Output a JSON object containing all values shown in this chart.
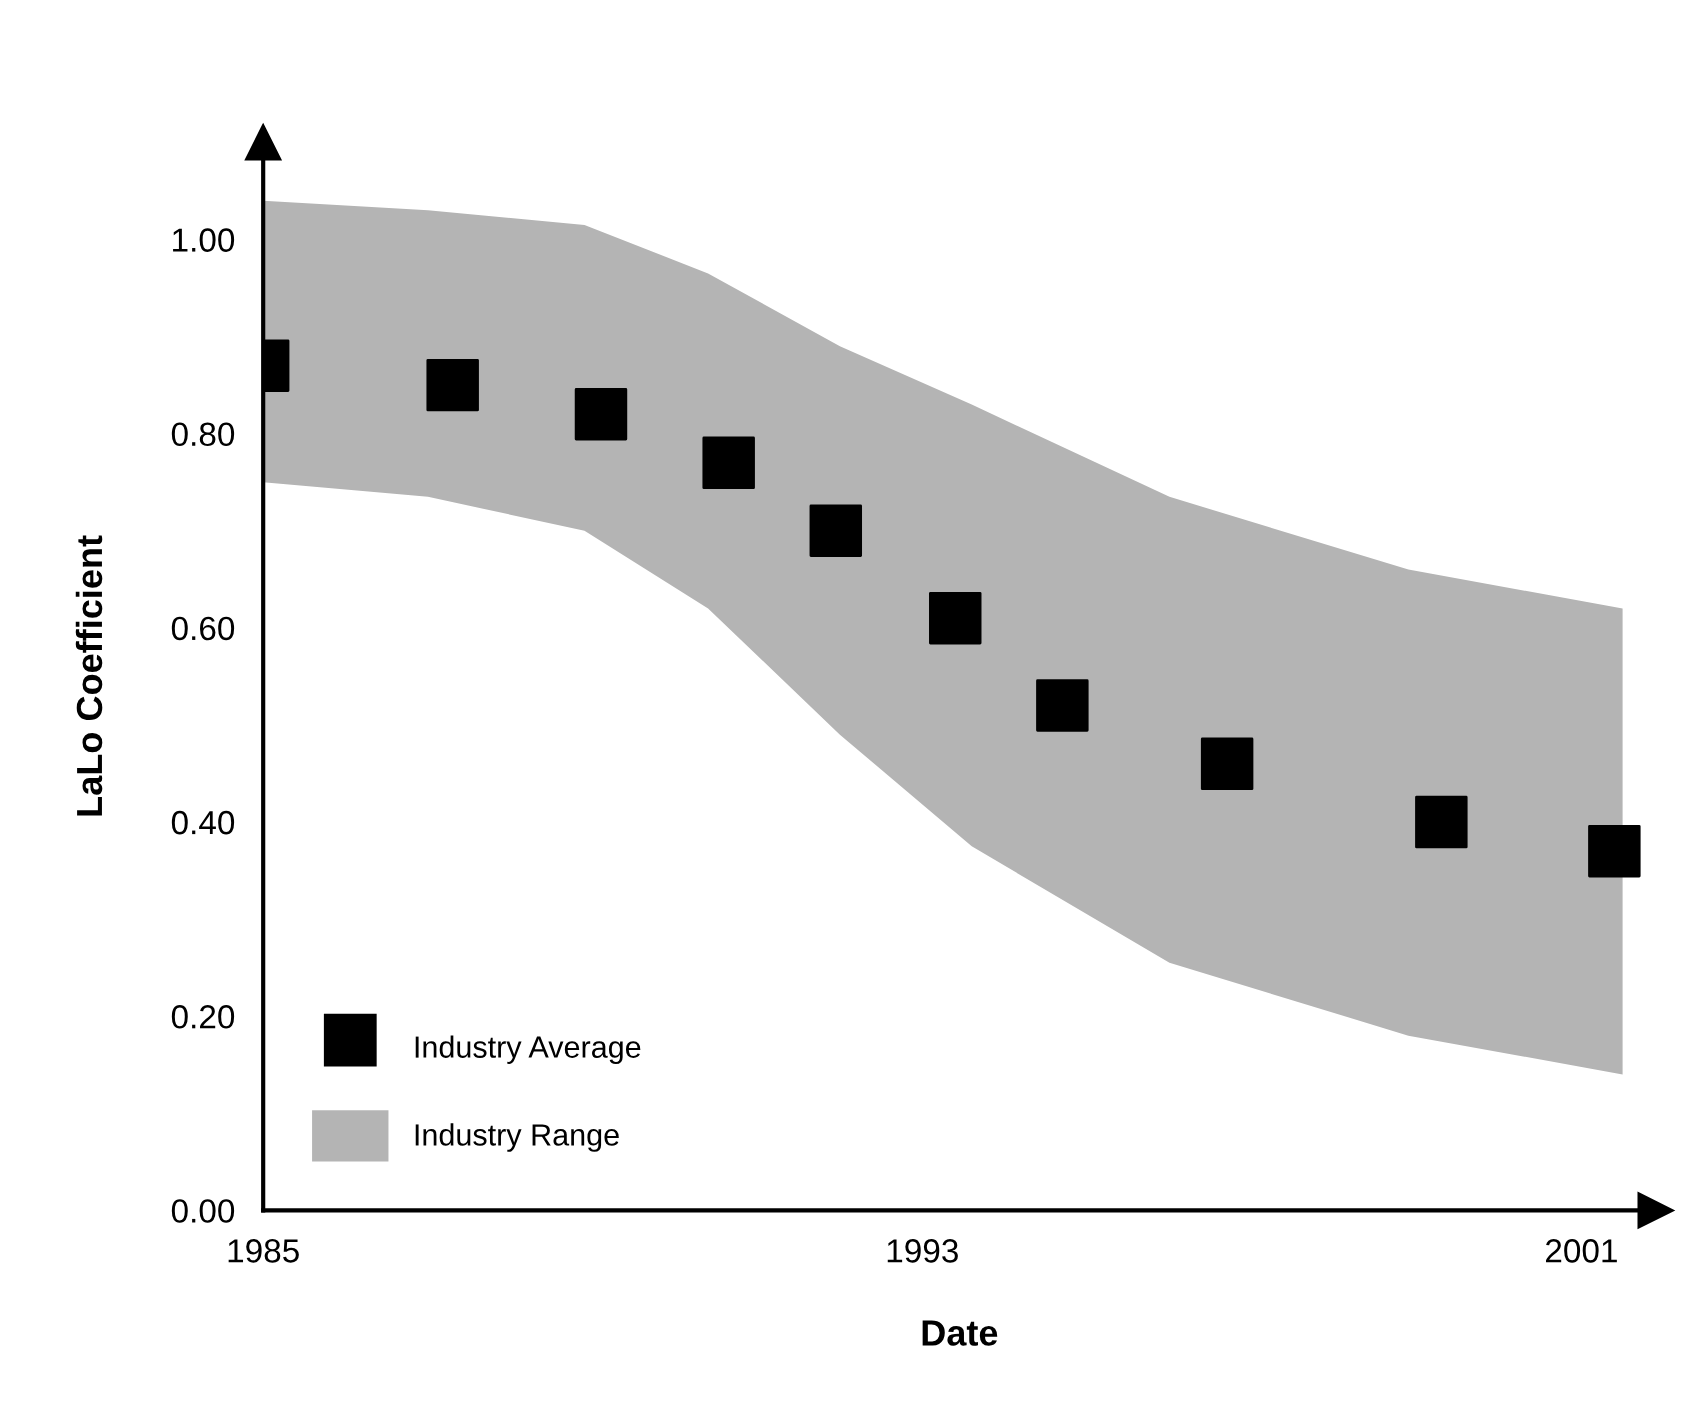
{
  "chart_data": {
    "type": "scatter",
    "xlabel": "Date",
    "ylabel": "LaLo Coefficient",
    "xlim": [
      1985,
      2001.9
    ],
    "xticks": [
      1985,
      1993,
      2001
    ],
    "ylim": [
      0,
      1.1
    ],
    "yticks": [
      {
        "value": 0,
        "label": "0.00"
      },
      {
        "value": 0.2,
        "label": "0.20"
      },
      {
        "value": 0.4,
        "label": "0.40"
      },
      {
        "value": 0.6,
        "label": "0.60"
      },
      {
        "value": 0.8,
        "label": "0.80"
      },
      {
        "value": 1.0,
        "label": "1.00"
      }
    ],
    "grid": false,
    "legend": "bottom left",
    "series": [
      {
        "name": "Industry Range",
        "type": "area",
        "color": "#b4b4b4",
        "x": [
          1985,
          1987,
          1988.9,
          1990.4,
          1992,
          1993.6,
          1996,
          1998.9,
          2001.5
        ],
        "values": [
          null,
          null,
          null,
          null,
          null,
          null,
          null,
          null,
          null
        ],
        "lower": [
          0.75,
          0.735,
          0.7,
          0.62,
          0.49,
          0.375,
          0.255,
          0.18,
          0.14
        ],
        "upper": [
          1.04,
          1.03,
          1.015,
          0.965,
          0.89,
          0.83,
          0.735,
          0.66,
          0.62
        ]
      },
      {
        "name": "Industry Average",
        "marker": "square",
        "color": "#000000",
        "x": [
          1985,
          1987.3,
          1989.1,
          1990.65,
          1991.95,
          1993.4,
          1994.7,
          1996.7,
          1999.3,
          2001.4
        ],
        "values": [
          0.87,
          0.85,
          0.82,
          0.77,
          0.7,
          0.61,
          0.52,
          0.46,
          0.4,
          0.37
        ]
      }
    ]
  }
}
